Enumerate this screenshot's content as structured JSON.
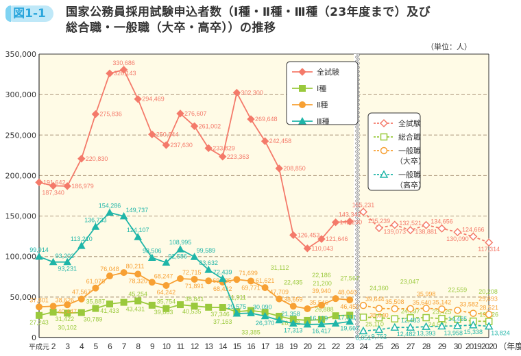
{
  "figure": {
    "badge": "図1-1",
    "title_line1": "国家公務員採用試験申込者数（Ⅰ種・Ⅱ種・Ⅲ種（23年度まで）及び",
    "title_line2": "総合職・一般職（大卒・高卒））の推移",
    "unit": "（単位：人）"
  },
  "chart_data": {
    "type": "line",
    "ylim": [
      0,
      350000
    ],
    "yticks": [
      "0",
      "50,000",
      "100,000",
      "150,000",
      "200,000",
      "250,000",
      "300,000",
      "350,000"
    ],
    "grid": "horizontal dashed",
    "background": "#fffbe6",
    "xlabel_suffix": "（年度）",
    "axis_break": "between 23 and 24",
    "left_panel": {
      "categories": [
        "平成元",
        "2",
        "3",
        "4",
        "5",
        "6",
        "7",
        "8",
        "9",
        "10",
        "11",
        "12",
        "13",
        "14",
        "15",
        "16",
        "17",
        "18",
        "19",
        "20",
        "21",
        "22",
        "23"
      ],
      "legend_position": "top-right of left panel",
      "series": [
        {
          "name": "全試験",
          "marker": "diamond-filled",
          "color": "#f47a6a",
          "values": [
            191642,
            187340,
            186979,
            220830,
            275836,
            326143,
            330686,
            294469,
            250844,
            237630,
            276607,
            261002,
            233829,
            223363,
            302300,
            269648,
            242458,
            208850,
            126453,
            110043,
            121646,
            142290,
            143342
          ]
        },
        {
          "name": "Ⅰ種",
          "marker": "square-filled",
          "color": "#9ac93c",
          "values": [
            27243,
            31422,
            30102,
            30789,
            35887,
            41433,
            43431,
            45254,
            39863,
            35754,
            40535,
            38841,
            37346,
            37163,
            31911,
            33385,
            31112,
            26268,
            22435,
            21200,
            22186,
            26888,
            27567
          ]
        },
        {
          "name": "Ⅱ種",
          "marker": "circle-filled",
          "color": "#f7a033",
          "values": [
            37801,
            38626,
            40447,
            47567,
            61076,
            76048,
            80211,
            78320,
            68247,
            64242,
            72715,
            71891,
            69985,
            68422,
            71699,
            69771,
            61621,
            47709,
            38659,
            35546,
            39940,
            48040,
            46450
          ]
        },
        {
          "name": "Ⅲ種",
          "marker": "triangle-filled",
          "color": "#1fb5a8",
          "values": [
            99914,
            93202,
            93231,
            113210,
            136733,
            154286,
            149737,
            124107,
            98506,
            92586,
            108995,
            99589,
            83632,
            72439,
            29575,
            30090,
            26370,
            21358,
            17313,
            16119,
            16417,
            17311,
            19667
          ]
        }
      ]
    },
    "right_panel": {
      "categories": [
        "24",
        "25",
        "26",
        "27",
        "28",
        "29",
        "30",
        "2019",
        "2020"
      ],
      "legend_position": "top-right of right panel",
      "series": [
        {
          "name": "全試験",
          "marker": "diamond-open",
          "color": "#f47a6a",
          "values": [
            155231,
            135239,
            139073,
            132521,
            138881,
            134656,
            130090,
            124666,
            117314
          ]
        },
        {
          "name": "総合職",
          "marker": "square-open",
          "color": "#9ac93c",
          "values": [
            25110,
            24360,
            23047,
            24297,
            24507,
            23425,
            22559,
            20208,
            19926
          ]
        },
        {
          "name": "一般職\n（大卒）",
          "name_line1": "一般職",
          "name_line2": "（大卒）",
          "marker": "circle-open",
          "color": "#f7a033",
          "values": [
            39644,
            35840,
            35508,
            35640,
            35998,
            35142,
            33582,
            29893,
            28521
          ]
        },
        {
          "name": "一般職\n（高卒）",
          "name_line1": "一般職",
          "name_line2": "（高卒）",
          "marker": "triangle-open",
          "color": "#1fb5a8",
          "values": [
            8051,
            9752,
            12482,
            12483,
            13393,
            13958,
            14455,
            15338,
            13824
          ]
        }
      ]
    }
  }
}
